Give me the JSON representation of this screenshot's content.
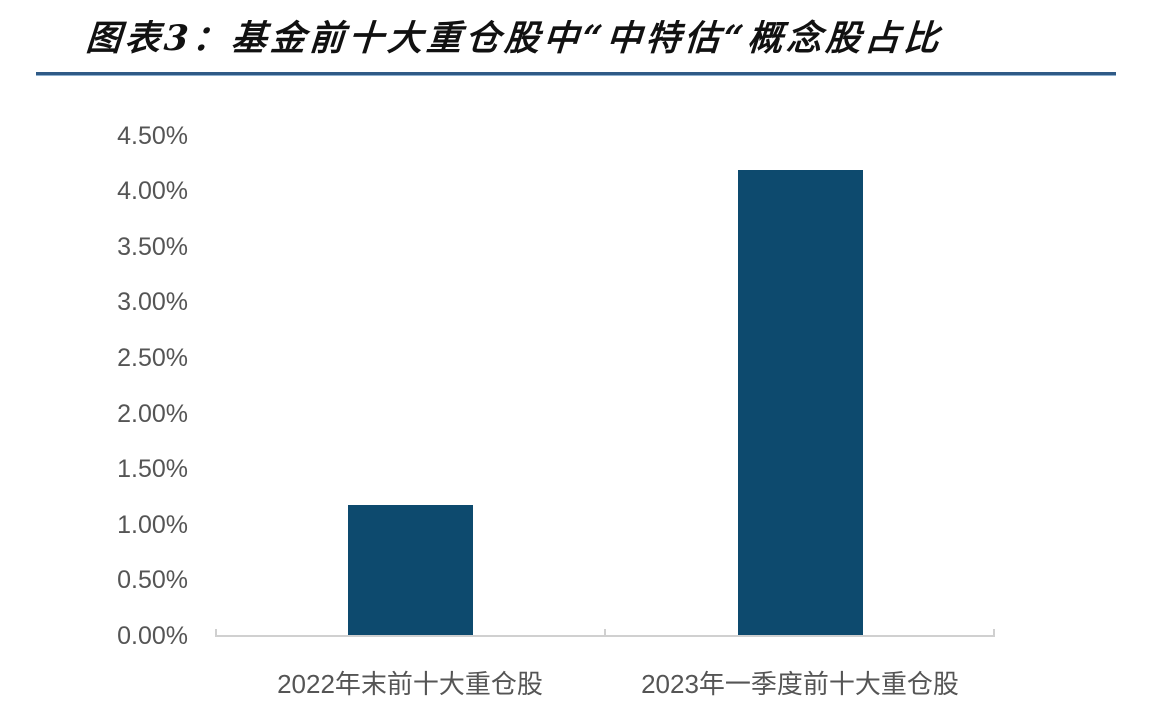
{
  "header": {
    "title": "图表3：基金前十大重仓股中“中特估“概念股占比"
  },
  "colors": {
    "bar": "#0d4a6e",
    "title_rule": "#2f5a86",
    "axis_text": "#555555",
    "axis_line": "#d0d0d0"
  },
  "chart_data": {
    "type": "bar",
    "title": "图表3：基金前十大重仓股中“中特估“概念股占比",
    "categories": [
      "2022年末前十大重仓股",
      "2023年一季度前十大重仓股"
    ],
    "values": [
      1.18,
      4.19
    ],
    "value_unit": "%",
    "xlabel": "",
    "ylabel": "",
    "ylim": [
      0,
      4.5
    ],
    "yticks": [
      "0.00%",
      "0.50%",
      "1.00%",
      "1.50%",
      "2.00%",
      "2.50%",
      "3.00%",
      "3.50%",
      "4.00%",
      "4.50%"
    ],
    "grid": false,
    "legend": null
  }
}
